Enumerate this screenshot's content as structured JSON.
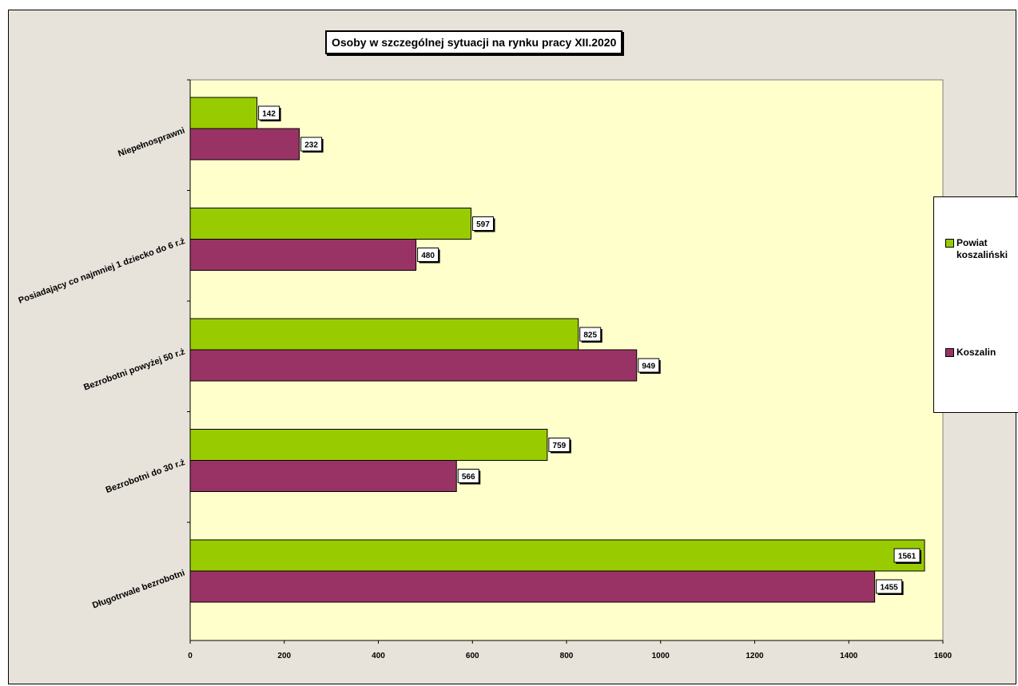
{
  "chart_data": {
    "type": "bar",
    "orientation": "horizontal",
    "title": "Osoby w szczególnej sytuacji na rynku pracy XII.2020",
    "categories": [
      "Niepełnosprawni",
      "Posiadający co najmniej 1 dziecko do 6 r.ż",
      "Bezrobotni powyżej 50 r.ż",
      "Bezrobotni do 30 r.ż",
      "Długotrwale bezrobotni"
    ],
    "series": [
      {
        "name": "Powiat koszaliński",
        "color": "#99cc00",
        "values": [
          142,
          597,
          825,
          759,
          1561
        ]
      },
      {
        "name": "Koszalin",
        "color": "#993366",
        "values": [
          232,
          480,
          949,
          566,
          1455
        ]
      }
    ],
    "xlim": [
      0,
      1600
    ],
    "xticks": [
      0,
      200,
      400,
      600,
      800,
      1000,
      1200,
      1400,
      1600
    ],
    "grid": false,
    "legend_position": "right",
    "plot_background": "#ffffcc"
  }
}
